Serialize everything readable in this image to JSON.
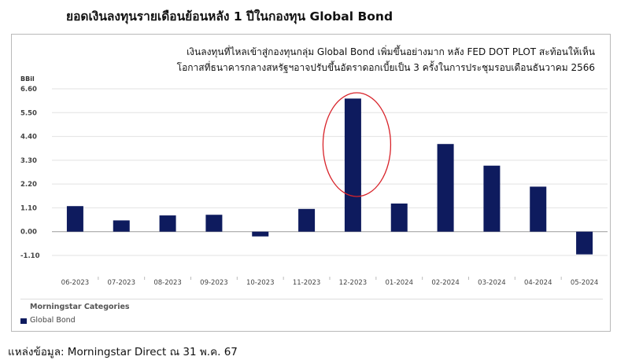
{
  "title": "ยอดเงินลงทุนรายเดือนย้อนหลัง 1 ปีในกองทุน Global Bond",
  "annotation": [
    "เงินลงทุนที่ไหลเข้าสู่กองทุนกลุ่ม Global Bond เพิ่มขึ้นอย่างมาก หลัง FED DOT PLOT สะท้อนให้เห็น",
    "โอกาสที่ธนาคารกลางสหรัฐฯอาจปรับขึ้นอัตราดอกเบี้ยเป็น 3 ครั้งในการประชุมรอบเดือนธันวาคม 2566"
  ],
  "source": "แหล่งข้อมูล: Morningstar Direct ณ 31 พ.ค. 67",
  "chart_data": {
    "type": "bar",
    "ylabel": "BBil",
    "ylim": [
      -1.1,
      6.6
    ],
    "yticks": [
      "6.60",
      "5.50",
      "4.40",
      "3.30",
      "2.20",
      "1.10",
      "0.00",
      "-1.10"
    ],
    "yticks_values": [
      6.6,
      5.5,
      4.4,
      3.3,
      2.2,
      1.1,
      0.0,
      -1.1
    ],
    "categories": [
      "06-2023",
      "07-2023",
      "08-2023",
      "09-2023",
      "10-2023",
      "11-2023",
      "12-2023",
      "01-2024",
      "02-2024",
      "03-2024",
      "04-2024",
      "05-2024"
    ],
    "series": [
      {
        "name": "Global Bond",
        "color": "#0e1b5e",
        "values": [
          1.18,
          0.52,
          0.75,
          0.78,
          -0.22,
          1.05,
          6.15,
          1.3,
          4.05,
          3.05,
          2.08,
          -1.05
        ]
      }
    ],
    "legend_title": "Morningstar Categories",
    "legend_position": "bottom-left",
    "grid": true,
    "highlight": {
      "category": "12-2023",
      "shape": "ellipse",
      "color": "#d8232a"
    }
  }
}
